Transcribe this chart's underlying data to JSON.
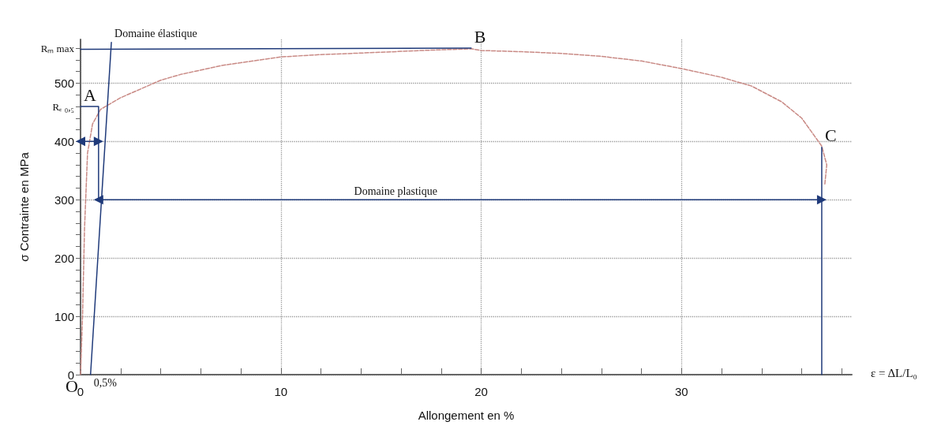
{
  "chart_data": {
    "type": "line",
    "xlabel": "Allongement en %",
    "ylabel": "σ Contrainte en MPa",
    "xlim": [
      0,
      38.5
    ],
    "xticks": [
      0,
      {
        "value": 2,
        "label": null
      },
      {
        "value": 4,
        "label": null
      },
      {
        "value": 6,
        "label": null
      },
      {
        "value": 8,
        "label": null
      },
      10,
      {
        "value": 12,
        "label": null
      },
      {
        "value": 14,
        "label": null
      },
      {
        "value": 16,
        "label": null
      },
      {
        "value": 18,
        "label": null
      },
      20,
      {
        "value": 22,
        "label": null
      },
      {
        "value": 24,
        "label": null
      },
      {
        "value": 26,
        "label": null
      },
      {
        "value": 28,
        "label": null
      },
      30,
      {
        "value": 32,
        "label": null
      },
      {
        "value": 34,
        "label": null
      },
      {
        "value": 36,
        "label": null
      },
      {
        "value": 38,
        "label": null
      }
    ],
    "ylim": [
      0,
      575
    ],
    "yticks": [
      0,
      100,
      200,
      300,
      400,
      500,
      {
        "value": 460,
        "label": "Rₑ ₀,₅"
      },
      {
        "value": 560,
        "label": "Rₘ max"
      }
    ],
    "grid": true,
    "series": [
      {
        "color": "#c98a85",
        "line_style": "dashed",
        "x": [
          0,
          0.1,
          0.2,
          0.35,
          0.6,
          1,
          1.5,
          2,
          3,
          4,
          5,
          7,
          10,
          12,
          15,
          17,
          19.5,
          20,
          22,
          24,
          26,
          28,
          30,
          32,
          33.5,
          35,
          36,
          37,
          37.25,
          37.15
        ],
        "values": [
          0,
          100,
          250,
          380,
          430,
          455,
          465,
          475,
          490,
          505,
          515,
          530,
          545,
          549,
          553,
          556,
          559,
          556,
          554,
          551,
          546,
          538,
          525,
          510,
          495,
          468,
          440,
          392,
          360,
          325
        ]
      },
      {
        "color": "#1f3a7a",
        "line_style": "solid",
        "x": [
          0,
          19.5
        ],
        "values": [
          558,
          560
        ]
      },
      {
        "color": "#1f3a7a",
        "line_style": "solid",
        "x": [
          0,
          0.9,
          0.9
        ],
        "values": [
          460,
          460,
          300
        ]
      },
      {
        "color": "#1f3a7a",
        "line_style": "solid",
        "x": [
          0.5,
          1.54
        ],
        "values": [
          0,
          570
        ]
      },
      {
        "color": "#1f3a7a",
        "line_style": "solid",
        "x": [
          37,
          37
        ],
        "values": [
          0,
          390
        ]
      },
      {
        "color": "#1f3a7a",
        "line_style": "solid",
        "marker": "triangle",
        "x": [
          0,
          0.9
        ],
        "values": [
          400,
          400
        ]
      },
      {
        "color": "#1f3a7a",
        "line_style": "solid",
        "marker": "triangle",
        "x": [
          0.9,
          37
        ],
        "values": [
          300,
          300
        ]
      }
    ],
    "annotations": [
      {
        "text": "A",
        "x": 0.9,
        "y": 460
      },
      {
        "text": "B",
        "x": 19.5,
        "y": 560
      },
      {
        "text": "C",
        "x": 37,
        "y": 390
      },
      {
        "text": "O",
        "x": 0,
        "y": 0
      },
      {
        "text": "0,5%",
        "x": 0.5,
        "y": 0
      },
      {
        "text": "Domaine élastique",
        "x": 1.54,
        "y": 570
      },
      {
        "text": "Domaine plastique",
        "x": 13.5,
        "y": 300
      },
      "ε = ΔL/L₀"
    ]
  }
}
